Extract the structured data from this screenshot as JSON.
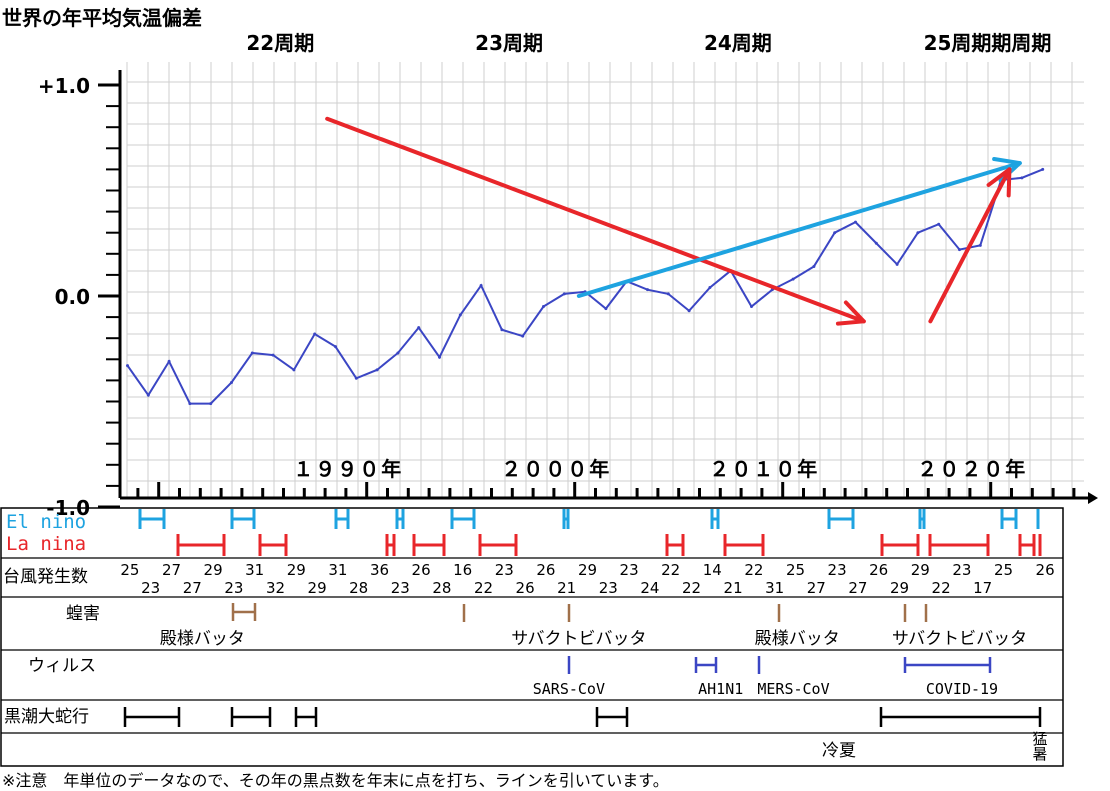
{
  "chart_data": {
    "type": "line",
    "title": "世界の年平均気温偏差",
    "ylim": [
      -1.0,
      1.0
    ],
    "yticks": [
      {
        "value": 1.0,
        "label": "+1.0"
      },
      {
        "value": 0.0,
        "label": "0.0"
      },
      {
        "value": -1.0,
        "label": "-1.0"
      }
    ],
    "grid": true,
    "x": [
      1979,
      1980,
      1981,
      1982,
      1983,
      1984,
      1985,
      1986,
      1987,
      1988,
      1989,
      1990,
      1991,
      1992,
      1993,
      1994,
      1995,
      1996,
      1997,
      1998,
      1999,
      2000,
      2001,
      2002,
      2003,
      2004,
      2005,
      2006,
      2007,
      2008,
      2009,
      2010,
      2011,
      2012,
      2013,
      2014,
      2015,
      2016,
      2017,
      2018,
      2019,
      2020,
      2021,
      2022,
      2023
    ],
    "values": [
      -0.33,
      -0.47,
      -0.31,
      -0.51,
      -0.51,
      -0.41,
      -0.27,
      -0.28,
      -0.35,
      -0.18,
      -0.24,
      -0.39,
      -0.35,
      -0.27,
      -0.15,
      -0.29,
      -0.09,
      0.05,
      -0.16,
      -0.19,
      -0.05,
      0.01,
      0.02,
      -0.06,
      0.07,
      0.03,
      0.01,
      -0.07,
      0.04,
      0.12,
      -0.05,
      0.03,
      0.08,
      0.14,
      0.3,
      0.35,
      0.25,
      0.15,
      0.3,
      0.34,
      0.22,
      0.24,
      0.55,
      0.56,
      0.6
    ],
    "decade_labels": [
      {
        "year": 1990,
        "label": "１９９０年"
      },
      {
        "year": 2000,
        "label": "２０００年"
      },
      {
        "year": 2010,
        "label": "２０１０年"
      },
      {
        "year": 2020,
        "label": "２０２０年"
      }
    ],
    "cycle_labels": [
      {
        "year": 1987.5,
        "label": "22周期"
      },
      {
        "year": 1998.5,
        "label": "23周期"
      },
      {
        "year": 2009.5,
        "label": "24周期"
      },
      {
        "year": 2021.5,
        "label": "25周期期周期"
      }
    ],
    "trend_arrows": [
      {
        "color": "#e8262a",
        "from": [
          1988.6,
          0.84
        ],
        "to": [
          2014.4,
          -0.12
        ]
      },
      {
        "color": "#1ea3e0",
        "from": [
          2000.7,
          0.0
        ],
        "to": [
          2021.9,
          0.63
        ]
      },
      {
        "color": "#e8262a",
        "from": [
          2017.6,
          -0.12
        ],
        "to": [
          2021.4,
          0.6
        ]
      }
    ]
  },
  "table": {
    "elnino_label": "El nino",
    "lanina_label": "La nina",
    "typhoon_label": "台風発生数",
    "typhoon_top": [
      {
        "year": 1979.5,
        "label": "25"
      },
      {
        "year": 1981.5,
        "label": "27"
      },
      {
        "year": 1983.5,
        "label": "29"
      },
      {
        "year": 1985.5,
        "label": "31"
      },
      {
        "year": 1987.5,
        "label": "29"
      },
      {
        "year": 1989.5,
        "label": "31"
      },
      {
        "year": 1991.5,
        "label": "36"
      },
      {
        "year": 1993.5,
        "label": "26"
      },
      {
        "year": 1995.5,
        "label": "16"
      },
      {
        "year": 1997.5,
        "label": "23"
      },
      {
        "year": 1999.5,
        "label": "26"
      },
      {
        "year": 2001.5,
        "label": "29"
      },
      {
        "year": 2003.5,
        "label": "23"
      },
      {
        "year": 2005.5,
        "label": "22"
      },
      {
        "year": 2007.5,
        "label": "14"
      },
      {
        "year": 2009.5,
        "label": "22"
      },
      {
        "year": 2011.5,
        "label": "25"
      },
      {
        "year": 2013.5,
        "label": "23"
      },
      {
        "year": 2015.5,
        "label": "26"
      },
      {
        "year": 2017.5,
        "label": "29"
      },
      {
        "year": 2019.5,
        "label": "23"
      },
      {
        "year": 2021.5,
        "label": "25"
      },
      {
        "year": 2023.5,
        "label": "26"
      }
    ],
    "typhoon_bottom": [
      {
        "year": 1980.5,
        "label": "23"
      },
      {
        "year": 1982.5,
        "label": "27"
      },
      {
        "year": 1984.5,
        "label": "23"
      },
      {
        "year": 1986.5,
        "label": "32"
      },
      {
        "year": 1988.5,
        "label": "29"
      },
      {
        "year": 1990.5,
        "label": "28"
      },
      {
        "year": 1992.5,
        "label": "23"
      },
      {
        "year": 1994.5,
        "label": "28"
      },
      {
        "year": 1996.5,
        "label": "22"
      },
      {
        "year": 1998.5,
        "label": "26"
      },
      {
        "year": 2000.5,
        "label": "21"
      },
      {
        "year": 2002.5,
        "label": "23"
      },
      {
        "year": 2004.5,
        "label": "24"
      },
      {
        "year": 2006.5,
        "label": "22"
      },
      {
        "year": 2008.5,
        "label": "21"
      },
      {
        "year": 2010.5,
        "label": "31"
      },
      {
        "year": 2012.5,
        "label": "27"
      },
      {
        "year": 2014.5,
        "label": "27"
      },
      {
        "year": 2016.5,
        "label": "29"
      },
      {
        "year": 2018.5,
        "label": "22"
      },
      {
        "year": 2020.5,
        "label": "17"
      }
    ],
    "locust_label": "蝗害",
    "locust_texts": [
      {
        "year": 1982.6,
        "label": "殿様バッタ"
      },
      {
        "year": 2000.7,
        "label": "サバクトビバッタ"
      },
      {
        "year": 2011.2,
        "label": "殿様バッタ"
      },
      {
        "year": 2019.0,
        "label": "サバクトビバッタ"
      }
    ],
    "virus_label": "ウィルス",
    "virus_texts": [
      {
        "year": 2000.7,
        "label": "SARS-CoV"
      },
      {
        "year": 2008.0,
        "label": "AH1N1"
      },
      {
        "year": 2011.5,
        "label": "MERS-CoV"
      },
      {
        "year": 2019.6,
        "label": "COVID-19"
      }
    ],
    "kuroshio_label": "黒潮大蛇行",
    "summer_cool": "冷夏",
    "summer_hot": "猛暑",
    "elnino_color": "#1ea3e0",
    "lanina_color": "#e8262a",
    "locust_color": "#a0704a",
    "virus_color": "#3b46c4"
  },
  "note": "※注意　年単位のデータなので、その年の黒点数を年末に点を打ち、ラインを引いています。"
}
